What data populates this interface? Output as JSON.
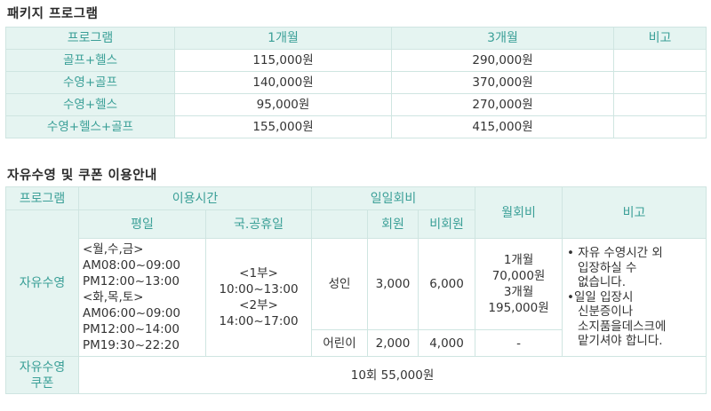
{
  "package": {
    "title": "패키지 프로그램",
    "headers": [
      "프로그램",
      "1개월",
      "3개월",
      "비고"
    ],
    "rows": [
      {
        "program": "골프+헬스",
        "one_month": "115,000원",
        "three_month": "290,000원",
        "note": ""
      },
      {
        "program": "수영+골프",
        "one_month": "140,000원",
        "three_month": "370,000원",
        "note": ""
      },
      {
        "program": "수영+헬스",
        "one_month": "95,000원",
        "three_month": "270,000원",
        "note": ""
      },
      {
        "program": "수영+헬스+골프",
        "one_month": "155,000원",
        "three_month": "415,000원",
        "note": ""
      }
    ]
  },
  "pool": {
    "title": "자유수영 및 쿠폰 이용안내",
    "headers": {
      "program": "프로그램",
      "usage_time": "이용시간",
      "daily_fee": "일일회비",
      "monthly_fee": "월회비",
      "note": "비고",
      "weekday": "평일",
      "holiday": "국.공휴일",
      "member": "회원",
      "non_member": "비회원"
    },
    "free_swim": {
      "label": "자유수영",
      "weekday_lines": [
        "<월,수,금>",
        "AM08:00~09:00",
        "PM12:00~13:00",
        "<화,목,토>",
        "AM06:00~09:00",
        "PM12:00~14:00",
        "PM19:30~22:20"
      ],
      "holiday_lines": [
        "<1부>",
        "10:00~13:00",
        "<2부>",
        "14:00~17:00"
      ],
      "adult": {
        "label": "성인",
        "member": "3,000",
        "non_member": "6,000"
      },
      "child": {
        "label": "어린이",
        "member": "2,000",
        "non_member": "4,000"
      },
      "monthly_lines": [
        "1개월",
        "70,000원",
        "3개월",
        "195,000원"
      ],
      "child_monthly": "-",
      "notes": [
        [
          "• 자유 수영시간 외",
          "입장하실 수",
          "없습니다."
        ],
        [
          "•일일 입장시",
          "신분증이나",
          "소지품을데스크에",
          "맡기셔야 합니다."
        ]
      ]
    },
    "coupon": {
      "label_lines": [
        "자유수영",
        "쿠폰"
      ],
      "value": "10회 55,000원"
    }
  }
}
